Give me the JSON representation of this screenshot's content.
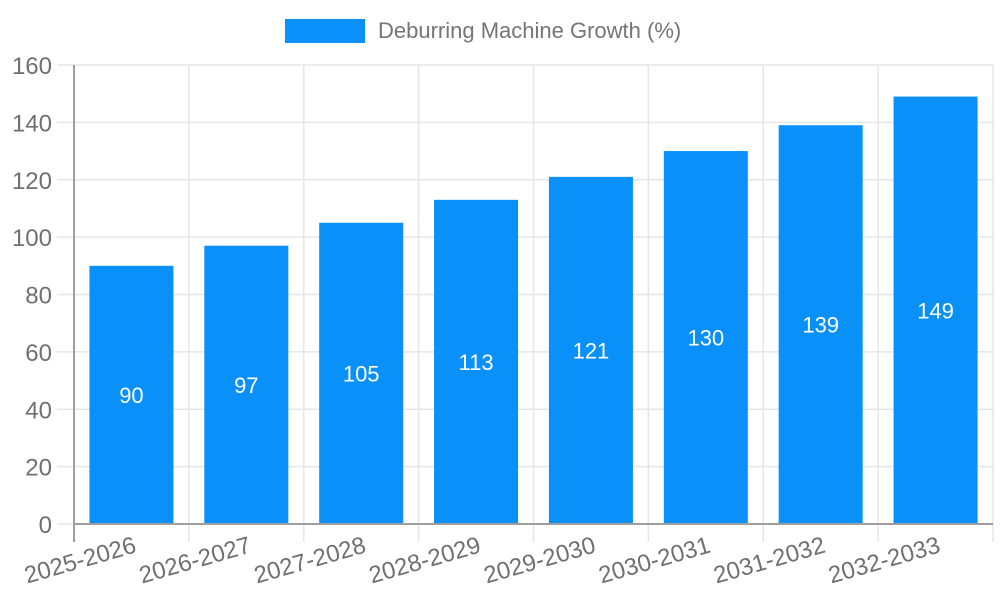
{
  "legend": {
    "label": "Deburring Machine Growth (%)"
  },
  "colors": {
    "bar": "#0990f9",
    "grid": "#e6e6e6",
    "axis": "#9e9e9e",
    "axis_label": "#707070",
    "legend_text": "#757575",
    "value_label": "#ffffff",
    "background": "#ffffff"
  },
  "chart_data": {
    "type": "bar",
    "title": "Deburring Machine Growth (%)",
    "categories": [
      "2025-2026",
      "2026-2027",
      "2027-2028",
      "2028-2029",
      "2029-2030",
      "2030-2031",
      "2031-2032",
      "2032-2033"
    ],
    "series": [
      {
        "name": "Deburring Machine Growth (%)",
        "values": [
          90,
          97,
          105,
          113,
          121,
          130,
          139,
          149
        ]
      }
    ],
    "xlabel": "",
    "ylabel": "",
    "ylim": [
      0,
      160
    ],
    "ytick_step": 20,
    "yticks": [
      0,
      20,
      40,
      60,
      80,
      100,
      120,
      140,
      160
    ],
    "grid": true,
    "legend_position": "top",
    "value_labels": "inside-center-white",
    "x_label_rotation_deg": -16
  }
}
